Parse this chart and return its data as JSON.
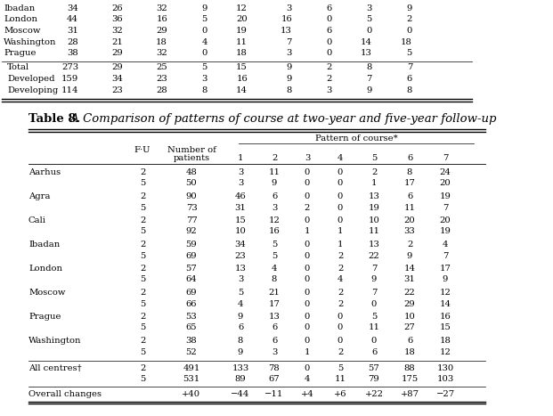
{
  "title_bold": "Table 8.",
  "title_italic": " A Comparison of patterns of course at two-year and five-year follow-up",
  "top_rows": [
    [
      "Ibadan",
      "34",
      "26",
      "32",
      "9",
      "12",
      "3",
      "6",
      "3",
      "9"
    ],
    [
      "London",
      "44",
      "36",
      "16",
      "5",
      "20",
      "16",
      "0",
      "5",
      "2"
    ],
    [
      "Moscow",
      "31",
      "32",
      "29",
      "0",
      "19",
      "13",
      "6",
      "0",
      "0"
    ],
    [
      "Washington",
      "28",
      "21",
      "18",
      "4",
      "11",
      "7",
      "0",
      "14",
      "18"
    ],
    [
      "Prague",
      "38",
      "29",
      "32",
      "0",
      "18",
      "3",
      "0",
      "13",
      "5"
    ]
  ],
  "summary_rows": [
    [
      "Total",
      "273",
      "29",
      "25",
      "5",
      "15",
      "9",
      "2",
      "8",
      "7"
    ],
    [
      "Developed",
      "159",
      "34",
      "23",
      "3",
      "16",
      "9",
      "2",
      "7",
      "6"
    ],
    [
      "Developing",
      "114",
      "23",
      "28",
      "8",
      "14",
      "8",
      "3",
      "9",
      "8"
    ]
  ],
  "cities": [
    "Aarhus",
    "Agra",
    "Cali",
    "Ibadan",
    "London",
    "Moscow",
    "Prague",
    "Washington"
  ],
  "main_data": {
    "Aarhus": [
      [
        2,
        48,
        3,
        11,
        0,
        0,
        2,
        8,
        24
      ],
      [
        5,
        50,
        3,
        9,
        0,
        0,
        1,
        17,
        20
      ]
    ],
    "Agra": [
      [
        2,
        90,
        46,
        6,
        0,
        0,
        13,
        6,
        19
      ],
      [
        5,
        73,
        31,
        3,
        2,
        0,
        19,
        11,
        7
      ]
    ],
    "Cali": [
      [
        2,
        77,
        15,
        12,
        0,
        0,
        10,
        20,
        20
      ],
      [
        5,
        92,
        10,
        16,
        1,
        1,
        11,
        33,
        19
      ]
    ],
    "Ibadan": [
      [
        2,
        59,
        34,
        5,
        0,
        1,
        13,
        2,
        4
      ],
      [
        5,
        69,
        23,
        5,
        0,
        2,
        22,
        9,
        7
      ]
    ],
    "London": [
      [
        2,
        57,
        13,
        4,
        0,
        2,
        7,
        14,
        17
      ],
      [
        5,
        64,
        3,
        8,
        0,
        4,
        9,
        31,
        9
      ]
    ],
    "Moscow": [
      [
        2,
        69,
        5,
        21,
        0,
        2,
        7,
        22,
        12
      ],
      [
        5,
        66,
        4,
        17,
        0,
        2,
        0,
        29,
        14
      ]
    ],
    "Prague": [
      [
        2,
        53,
        9,
        13,
        0,
        0,
        5,
        10,
        16
      ],
      [
        5,
        65,
        6,
        6,
        0,
        0,
        11,
        27,
        15
      ]
    ],
    "Washington": [
      [
        2,
        38,
        8,
        6,
        0,
        0,
        0,
        6,
        18
      ],
      [
        5,
        52,
        9,
        3,
        1,
        2,
        6,
        18,
        12
      ]
    ]
  },
  "all_centres_label": "All centres†",
  "all_centres_rows": [
    [
      2,
      491,
      133,
      78,
      0,
      5,
      57,
      88,
      130
    ],
    [
      5,
      531,
      89,
      67,
      4,
      11,
      79,
      175,
      103
    ]
  ],
  "overall_changes_label": "Overall changes",
  "overall_changes_values": [
    "+40",
    "−44",
    "−11",
    "+4",
    "+6",
    "+22",
    "+87",
    "−27"
  ],
  "bg_color": "#ffffff",
  "text_color": "#000000",
  "font_size": 7.2,
  "title_font_size": 9.5
}
